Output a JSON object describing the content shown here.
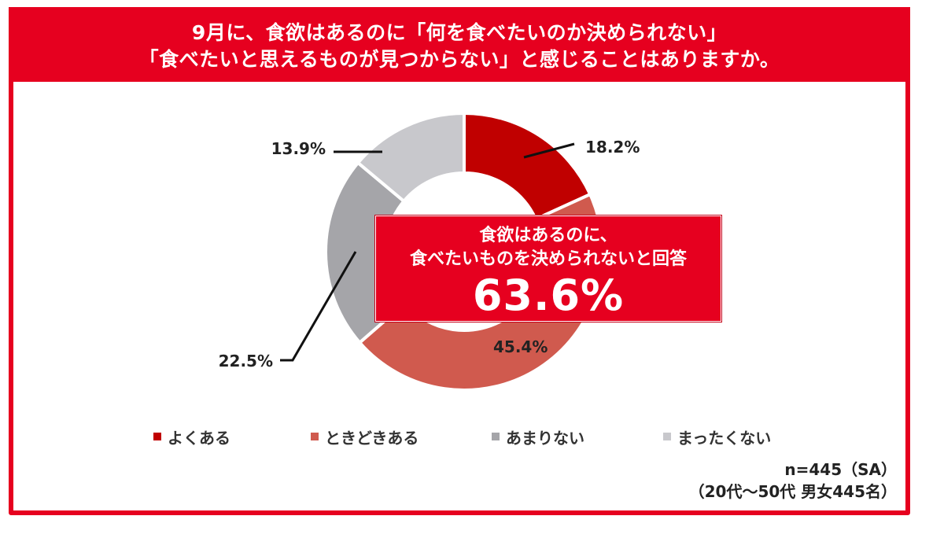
{
  "title": {
    "line1": "9月に、食欲はあるのに「何を食べたいのか決められない」",
    "line2": "「食べたいと思えるものが見つからない」と感じることはありますか。"
  },
  "callout": {
    "line1": "食欲はあるのに、",
    "line2": "食べたいものを決められないと回答",
    "value": "63.6%"
  },
  "note": {
    "line1": "n=445（SA）",
    "line2": "（20代～50代 男女445名）"
  },
  "colors": {
    "accent": "#e6001f",
    "often": "#c00000",
    "sometimes": "#d05a4e",
    "rarely": "#a5a5a9",
    "never": "#c8c8cc"
  },
  "chart_data": {
    "type": "pie",
    "donut": true,
    "categories": [
      "よくある",
      "ときどきある",
      "あまりない",
      "まったくない"
    ],
    "values": [
      18.2,
      45.4,
      22.5,
      13.9
    ],
    "labels": [
      "18.2%",
      "45.4%",
      "22.5%",
      "13.9%"
    ],
    "legend_position": "bottom"
  }
}
